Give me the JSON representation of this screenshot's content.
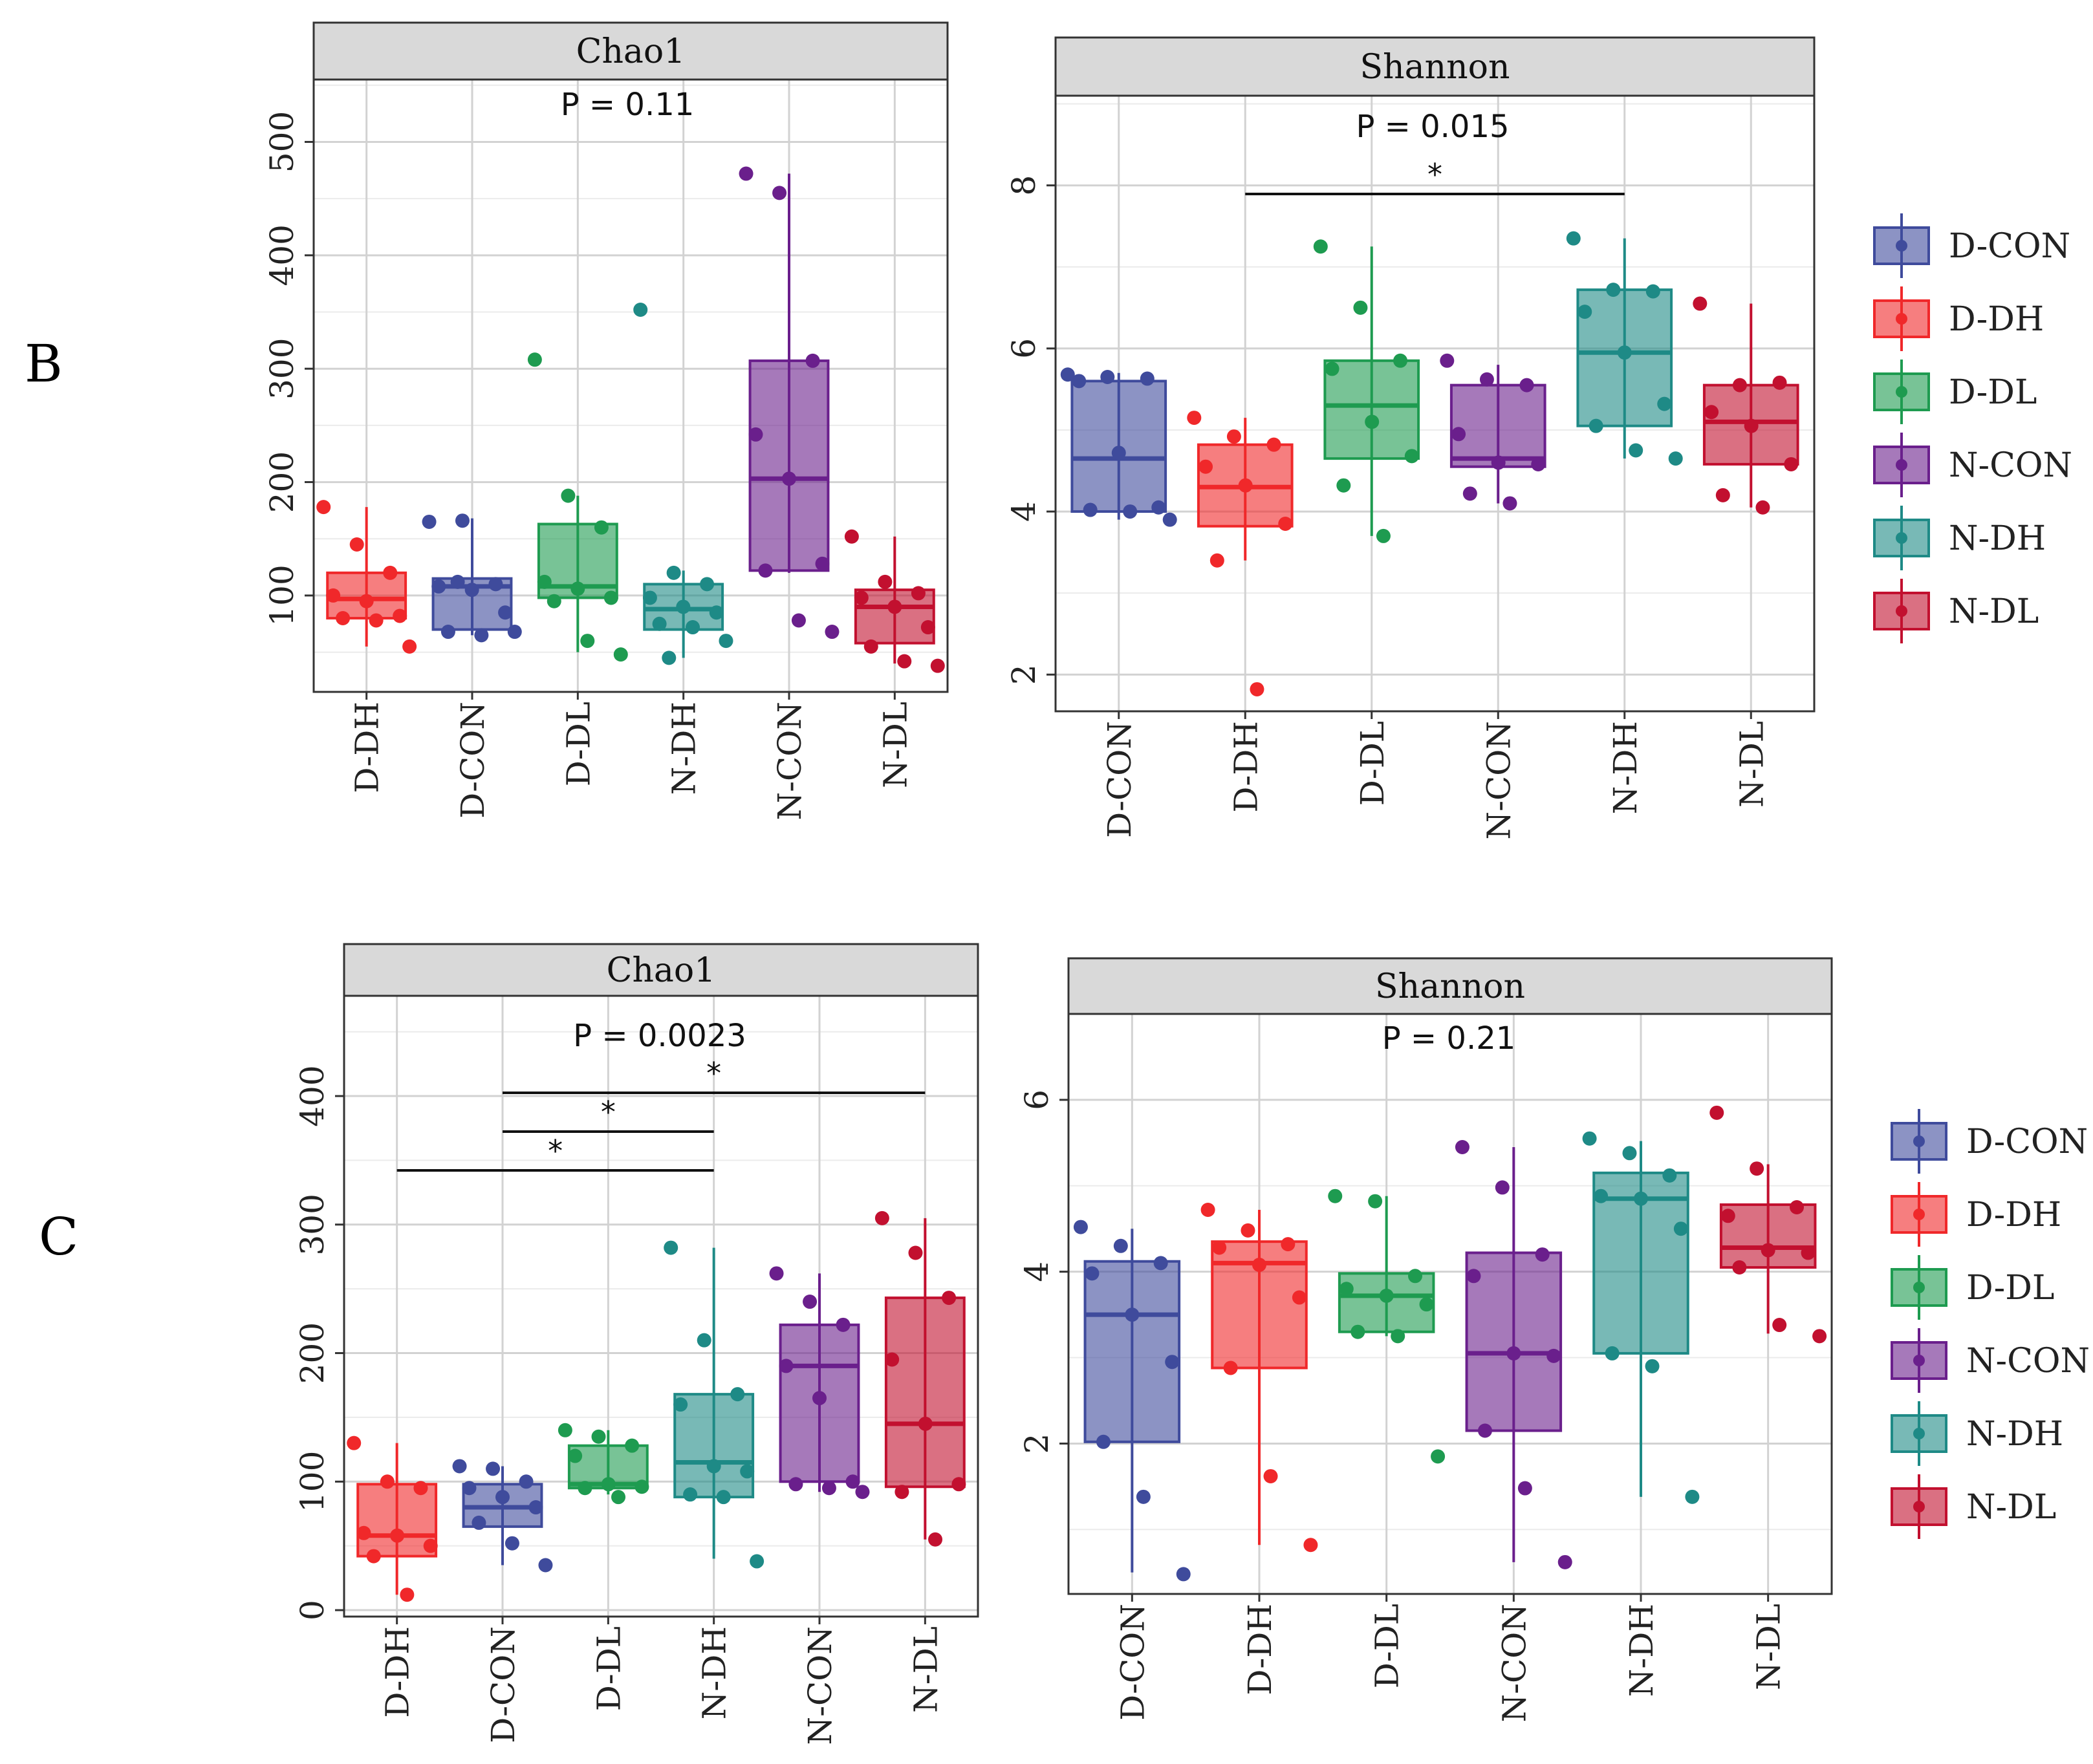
{
  "figure": {
    "panel_labels": [
      "B",
      "C"
    ],
    "group_colors": {
      "D-CON": "#3F4B9C",
      "D-DH": "#F0282A",
      "D-DL": "#1E9B50",
      "N-CON": "#6A1F8C",
      "N-DH": "#1E8A86",
      "N-DL": "#C2102F"
    }
  },
  "chart_data": [
    {
      "type": "box",
      "panel": "B",
      "title": "Chao1",
      "p_label": "P = 0.11",
      "categories": [
        "D-DH",
        "D-CON",
        "D-DL",
        "N-DH",
        "N-CON",
        "N-DL"
      ],
      "ylim": [
        15,
        555
      ],
      "yticks": [
        100,
        200,
        300,
        400,
        500
      ],
      "grid": true,
      "boxes": [
        {
          "group": "D-CON",
          "q1": 70,
          "median": 108,
          "q3": 115,
          "whisker_low": 65,
          "whisker_high": 168,
          "points": [
            165,
            166,
            110,
            108,
            105,
            85,
            68,
            65,
            68,
            112
          ]
        },
        {
          "group": "D-DH",
          "q1": 80,
          "median": 97,
          "q3": 120,
          "whisker_low": 55,
          "whisker_high": 178,
          "points": [
            178,
            145,
            120,
            100,
            95,
            82,
            80,
            78,
            55
          ]
        },
        {
          "group": "D-DL",
          "q1": 98,
          "median": 108,
          "q3": 163,
          "whisker_low": 50,
          "whisker_high": 188,
          "points": [
            308,
            188,
            160,
            112,
            106,
            98,
            95,
            60,
            48
          ]
        },
        {
          "group": "N-CON",
          "q1": 122,
          "median": 203,
          "q3": 307,
          "whisker_low": 120,
          "whisker_high": 472,
          "points": [
            472,
            455,
            307,
            242,
            203,
            128,
            122,
            78,
            68
          ]
        },
        {
          "group": "N-DH",
          "q1": 70,
          "median": 88,
          "q3": 110,
          "whisker_low": 45,
          "whisker_high": 122,
          "points": [
            352,
            120,
            110,
            98,
            90,
            85,
            75,
            72,
            60,
            45
          ]
        },
        {
          "group": "N-DL",
          "q1": 58,
          "median": 90,
          "q3": 105,
          "whisker_low": 40,
          "whisker_high": 152,
          "points": [
            152,
            112,
            102,
            98,
            90,
            72,
            55,
            42,
            38
          ]
        }
      ]
    },
    {
      "type": "box",
      "panel": "B",
      "title": "Shannon",
      "p_label": "P = 0.015",
      "categories": [
        "D-CON",
        "D-DH",
        "D-DL",
        "N-CON",
        "N-DH",
        "N-DL"
      ],
      "ylim": [
        1.55,
        9.1
      ],
      "yticks": [
        2,
        4,
        6,
        8
      ],
      "grid": true,
      "significance": [
        {
          "from": "D-DH",
          "to": "N-DH",
          "label": "*"
        }
      ],
      "boxes": [
        {
          "group": "D-CON",
          "q1": 4.0,
          "median": 4.65,
          "q3": 5.6,
          "whisker_low": 3.9,
          "whisker_high": 5.7,
          "points": [
            5.68,
            5.65,
            5.63,
            5.6,
            4.72,
            4.05,
            4.02,
            4.0,
            3.9
          ]
        },
        {
          "group": "D-DH",
          "q1": 3.82,
          "median": 4.3,
          "q3": 4.82,
          "whisker_low": 3.4,
          "whisker_high": 5.15,
          "points": [
            5.15,
            4.92,
            4.82,
            4.55,
            4.32,
            3.85,
            3.4,
            1.82
          ]
        },
        {
          "group": "D-DL",
          "q1": 4.65,
          "median": 5.3,
          "q3": 5.85,
          "whisker_low": 3.7,
          "whisker_high": 7.25,
          "points": [
            7.25,
            6.5,
            5.85,
            5.75,
            5.1,
            4.68,
            4.32,
            3.7
          ]
        },
        {
          "group": "N-CON",
          "q1": 4.55,
          "median": 4.65,
          "q3": 5.55,
          "whisker_low": 4.1,
          "whisker_high": 5.8,
          "points": [
            5.85,
            5.62,
            5.55,
            4.95,
            4.6,
            4.58,
            4.22,
            4.1
          ]
        },
        {
          "group": "N-DH",
          "q1": 5.05,
          "median": 5.95,
          "q3": 6.72,
          "whisker_low": 4.65,
          "whisker_high": 7.35,
          "points": [
            7.35,
            6.72,
            6.7,
            6.45,
            5.95,
            5.32,
            5.05,
            4.75,
            4.65
          ]
        },
        {
          "group": "N-DL",
          "q1": 4.58,
          "median": 5.1,
          "q3": 5.55,
          "whisker_low": 4.05,
          "whisker_high": 6.55,
          "points": [
            6.55,
            5.55,
            5.58,
            5.22,
            5.05,
            4.58,
            4.2,
            4.05
          ]
        }
      ]
    },
    {
      "type": "box",
      "panel": "C",
      "title": "Chao1",
      "p_label": "P = 0.0023",
      "categories": [
        "D-DH",
        "D-CON",
        "D-DL",
        "N-DH",
        "N-CON",
        "N-DL"
      ],
      "ylim": [
        -5,
        478
      ],
      "yticks": [
        0,
        100,
        200,
        300,
        400
      ],
      "grid": true,
      "significance": [
        {
          "from": "D-DH",
          "to": "N-DH",
          "label": "*"
        },
        {
          "from": "D-CON",
          "to": "N-DH",
          "label": "*"
        },
        {
          "from": "D-CON",
          "to": "N-DL",
          "label": "*"
        }
      ],
      "boxes": [
        {
          "group": "D-CON",
          "q1": 65,
          "median": 80,
          "q3": 98,
          "whisker_low": 35,
          "whisker_high": 112,
          "points": [
            112,
            110,
            100,
            95,
            88,
            80,
            68,
            52,
            35
          ]
        },
        {
          "group": "D-DH",
          "q1": 42,
          "median": 58,
          "q3": 98,
          "whisker_low": 12,
          "whisker_high": 130,
          "points": [
            130,
            100,
            95,
            60,
            58,
            50,
            42,
            12
          ]
        },
        {
          "group": "D-DL",
          "q1": 95,
          "median": 98,
          "q3": 128,
          "whisker_low": 90,
          "whisker_high": 140,
          "points": [
            140,
            135,
            128,
            120,
            98,
            96,
            95,
            88
          ]
        },
        {
          "group": "N-CON",
          "q1": 100,
          "median": 190,
          "q3": 222,
          "whisker_low": 92,
          "whisker_high": 262,
          "points": [
            262,
            240,
            222,
            190,
            165,
            100,
            98,
            95,
            92
          ]
        },
        {
          "group": "N-DH",
          "q1": 88,
          "median": 115,
          "q3": 168,
          "whisker_low": 40,
          "whisker_high": 282,
          "points": [
            282,
            210,
            168,
            160,
            112,
            108,
            90,
            88,
            38
          ]
        },
        {
          "group": "N-DL",
          "q1": 96,
          "median": 145,
          "q3": 243,
          "whisker_low": 55,
          "whisker_high": 305,
          "points": [
            305,
            278,
            243,
            195,
            145,
            98,
            92,
            55
          ]
        }
      ]
    },
    {
      "type": "box",
      "panel": "C",
      "title": "Shannon",
      "p_label": "P = 0.21",
      "categories": [
        "D-CON",
        "D-DH",
        "D-DL",
        "N-CON",
        "N-DH",
        "N-DL"
      ],
      "ylim": [
        0.25,
        7.0
      ],
      "yticks": [
        2,
        4,
        6
      ],
      "grid": true,
      "boxes": [
        {
          "group": "D-CON",
          "q1": 2.02,
          "median": 3.5,
          "q3": 4.12,
          "whisker_low": 0.5,
          "whisker_high": 4.5,
          "points": [
            4.52,
            4.3,
            4.1,
            3.98,
            3.5,
            2.95,
            2.02,
            1.38,
            0.48
          ]
        },
        {
          "group": "D-DH",
          "q1": 2.88,
          "median": 4.1,
          "q3": 4.35,
          "whisker_low": 0.82,
          "whisker_high": 4.72,
          "points": [
            4.72,
            4.48,
            4.32,
            4.28,
            4.08,
            3.7,
            2.88,
            1.62,
            0.82
          ]
        },
        {
          "group": "D-DL",
          "q1": 3.3,
          "median": 3.72,
          "q3": 3.98,
          "whisker_low": 3.25,
          "whisker_high": 4.88,
          "points": [
            4.88,
            4.82,
            3.95,
            3.8,
            3.72,
            3.62,
            3.3,
            3.25,
            1.85
          ]
        },
        {
          "group": "N-CON",
          "q1": 2.15,
          "median": 3.05,
          "q3": 4.22,
          "whisker_low": 0.62,
          "whisker_high": 5.45,
          "points": [
            5.45,
            4.98,
            4.2,
            3.95,
            3.05,
            3.02,
            2.15,
            1.48,
            0.62
          ]
        },
        {
          "group": "N-DH",
          "q1": 3.05,
          "median": 4.85,
          "q3": 5.15,
          "whisker_low": 1.38,
          "whisker_high": 5.52,
          "points": [
            5.55,
            5.38,
            5.12,
            4.88,
            4.85,
            4.5,
            3.05,
            2.9,
            1.38
          ]
        },
        {
          "group": "N-DL",
          "q1": 4.05,
          "median": 4.28,
          "q3": 4.78,
          "whisker_low": 3.28,
          "whisker_high": 5.25,
          "points": [
            5.85,
            5.2,
            4.75,
            4.65,
            4.25,
            4.22,
            4.05,
            3.38,
            3.25
          ]
        }
      ]
    }
  ],
  "legend": {
    "items": [
      "D-CON",
      "D-DH",
      "D-DL",
      "N-CON",
      "N-DH",
      "N-DL"
    ]
  }
}
